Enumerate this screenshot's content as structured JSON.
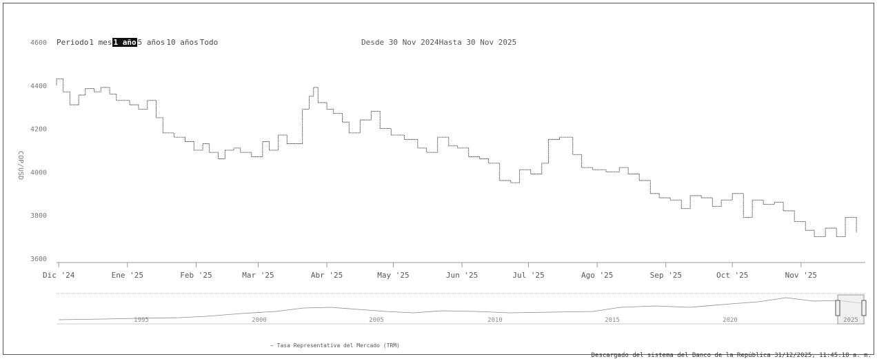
{
  "toolbar": {
    "period_label": "Periodo",
    "buttons": [
      {
        "label": "1 mes",
        "active": false
      },
      {
        "label": "1 año",
        "active": true
      },
      {
        "label": "5 años",
        "active": false
      },
      {
        "label": "10 años",
        "active": false
      },
      {
        "label": "Todo",
        "active": false
      }
    ]
  },
  "range": {
    "from_label": "Desde",
    "from_value": "30 Nov 2024",
    "to_label": "Hasta",
    "to_value": "30 Nov 2025"
  },
  "legend": {
    "label": "Tasa Representativa del Mercado (TRM)"
  },
  "credits": {
    "text": "Descargado del sistema del Banco de la República 31/12/2025, 11:45:18 a. m."
  },
  "colors": {
    "line": "#333333",
    "axis": "#999999",
    "navigator_fill": "#e6e6e6"
  },
  "chart_data": {
    "type": "line",
    "title": "",
    "xlabel": "",
    "ylabel": "COP/USD",
    "ylim": [
      3600,
      4600
    ],
    "yticks": [
      3600,
      3800,
      4000,
      4200,
      4400,
      4600
    ],
    "x_tick_labels": [
      "Dic '24",
      "Ene '25",
      "Feb '25",
      "Mar '25",
      "Abr '25",
      "May '25",
      "Jun '25",
      "Jul '25",
      "Ago '25",
      "Sep '25",
      "Oct '25",
      "Nov '25"
    ],
    "x_range": [
      "2024-11-30",
      "2025-11-30"
    ],
    "grid": false,
    "legend_position": "bottom-left",
    "series": [
      {
        "name": "Tasa Representativa del Mercado (TRM)",
        "x": [
          "2024-11-25",
          "2024-11-28",
          "2024-12-03",
          "2024-12-06",
          "2024-12-10",
          "2024-12-13",
          "2024-12-17",
          "2024-12-20",
          "2024-12-24",
          "2024-12-27",
          "2025-01-02",
          "2025-01-06",
          "2025-01-10",
          "2025-01-14",
          "2025-01-17",
          "2025-01-22",
          "2025-01-27",
          "2025-01-31",
          "2025-02-04",
          "2025-02-07",
          "2025-02-11",
          "2025-02-14",
          "2025-02-18",
          "2025-02-21",
          "2025-02-26",
          "2025-03-03",
          "2025-03-06",
          "2025-03-10",
          "2025-03-14",
          "2025-03-18",
          "2025-03-21",
          "2025-03-24",
          "2025-03-26",
          "2025-03-28",
          "2025-04-01",
          "2025-04-04",
          "2025-04-08",
          "2025-04-11",
          "2025-04-16",
          "2025-04-21",
          "2025-04-25",
          "2025-04-30",
          "2025-05-06",
          "2025-05-12",
          "2025-05-16",
          "2025-05-21",
          "2025-05-26",
          "2025-05-30",
          "2025-06-04",
          "2025-06-09",
          "2025-06-13",
          "2025-06-18",
          "2025-06-23",
          "2025-06-27",
          "2025-07-02",
          "2025-07-07",
          "2025-07-10",
          "2025-07-15",
          "2025-07-21",
          "2025-07-25",
          "2025-07-30",
          "2025-08-05",
          "2025-08-11",
          "2025-08-15",
          "2025-08-20",
          "2025-08-25",
          "2025-08-29",
          "2025-09-03",
          "2025-09-08",
          "2025-09-12",
          "2025-09-17",
          "2025-09-22",
          "2025-09-26",
          "2025-10-01",
          "2025-10-06",
          "2025-10-10",
          "2025-10-15",
          "2025-10-20",
          "2025-10-24",
          "2025-10-29",
          "2025-11-03",
          "2025-11-07",
          "2025-11-12",
          "2025-11-17",
          "2025-11-21",
          "2025-11-26"
        ],
        "values": [
          4400,
          4430,
          4370,
          4310,
          4355,
          4385,
          4370,
          4390,
          4360,
          4330,
          4310,
          4290,
          4330,
          4250,
          4180,
          4160,
          4140,
          4100,
          4130,
          4090,
          4060,
          4100,
          4110,
          4090,
          4070,
          4140,
          4100,
          4170,
          4130,
          4130,
          4290,
          4350,
          4390,
          4320,
          4290,
          4270,
          4230,
          4180,
          4240,
          4280,
          4200,
          4170,
          4150,
          4110,
          4090,
          4160,
          4120,
          4110,
          4070,
          4060,
          4040,
          3960,
          3950,
          4010,
          3990,
          4040,
          4150,
          4160,
          4080,
          4020,
          4010,
          4000,
          4020,
          3990,
          3960,
          3900,
          3880,
          3870,
          3830,
          3890,
          3880,
          3840,
          3870,
          3900,
          3790,
          3870,
          3850,
          3860,
          3820,
          3770,
          3730,
          3700,
          3740,
          3700,
          3790,
          3720
        ]
      }
    ]
  },
  "navigator": {
    "x_tick_labels": [
      "1995",
      "2000",
      "2005",
      "2010",
      "2015",
      "2020",
      "2025"
    ]
  }
}
